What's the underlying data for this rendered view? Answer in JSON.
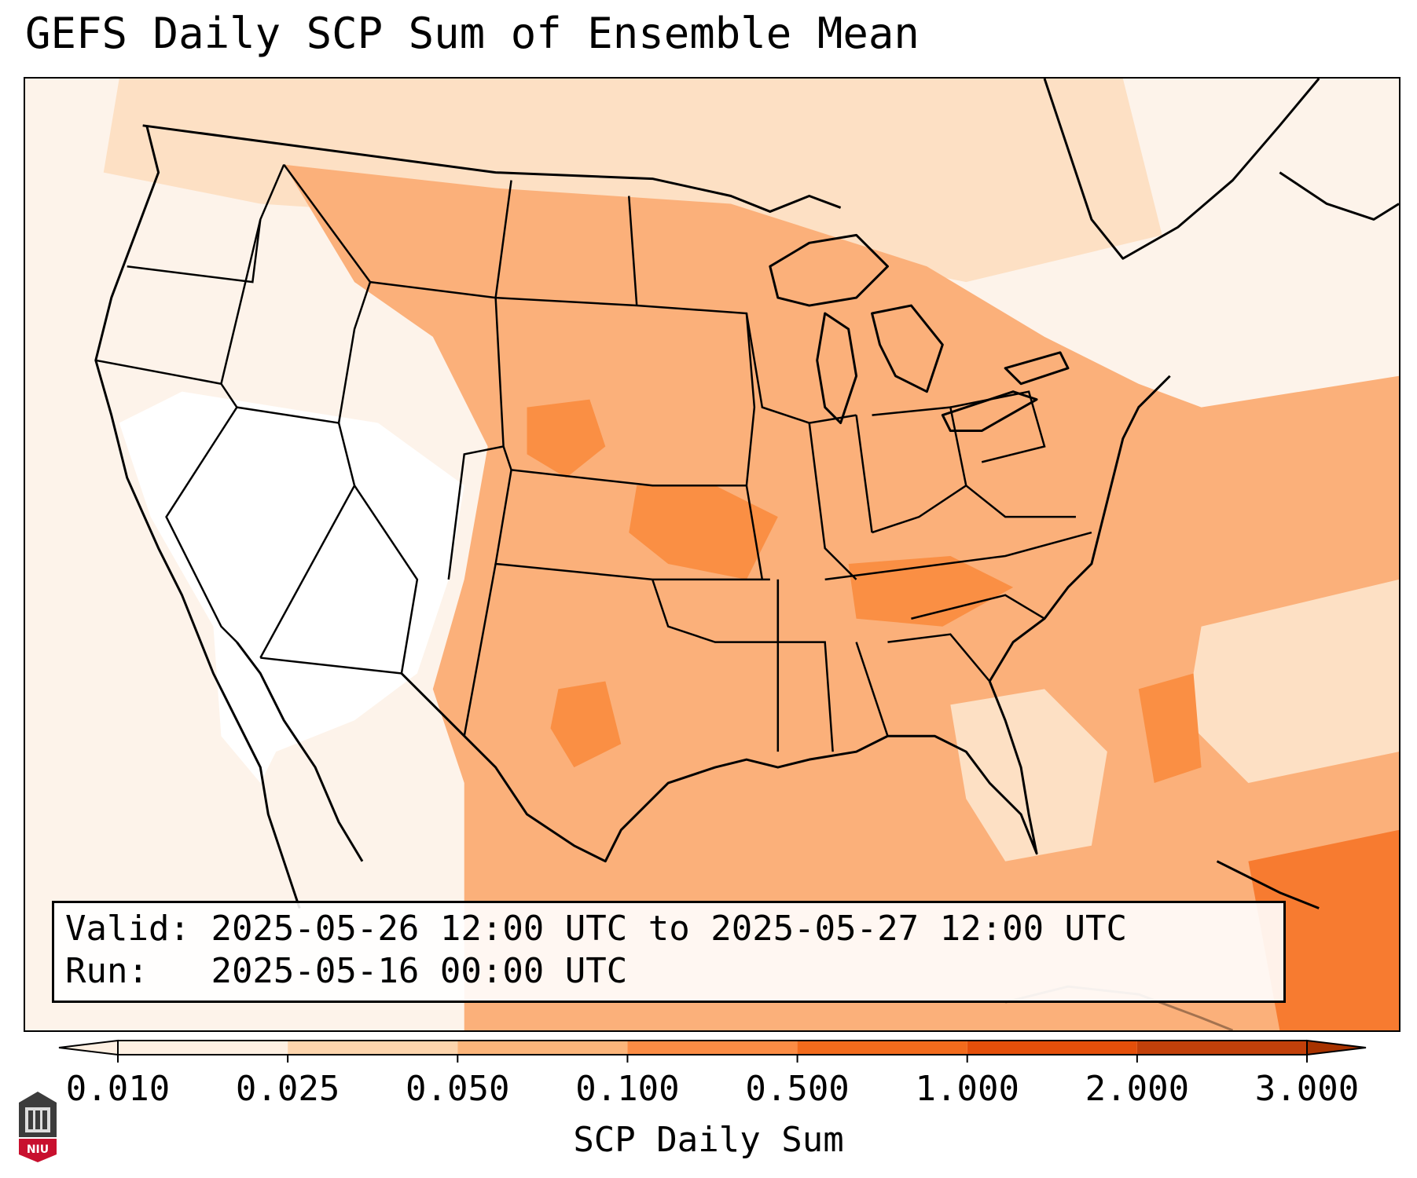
{
  "title": "GEFS Daily SCP Sum of Ensemble Mean",
  "info": {
    "valid_label": "Valid:",
    "valid_value": "2025-05-26 12:00 UTC to 2025-05-27 12:00 UTC",
    "run_label": "Run:",
    "run_value": "2025-05-16 00:00 UTC"
  },
  "colorbar": {
    "label": "SCP Daily Sum",
    "ticks": [
      "0.010",
      "0.025",
      "0.050",
      "0.100",
      "0.500",
      "1.000",
      "2.000",
      "3.000"
    ],
    "colors": [
      "#fef0e2",
      "#fdd5ad",
      "#fcb57a",
      "#fb8c44",
      "#f26b1c",
      "#e44f0a",
      "#c2400a"
    ],
    "extend": "both"
  },
  "logo_text": "NIU",
  "colors": {
    "shade_light": "#fef0e2",
    "shade_medium": "#fdd5ad",
    "shade_main": "#fbb07a",
    "shade_strong": "#fa8f44",
    "borders": "#000000"
  }
}
